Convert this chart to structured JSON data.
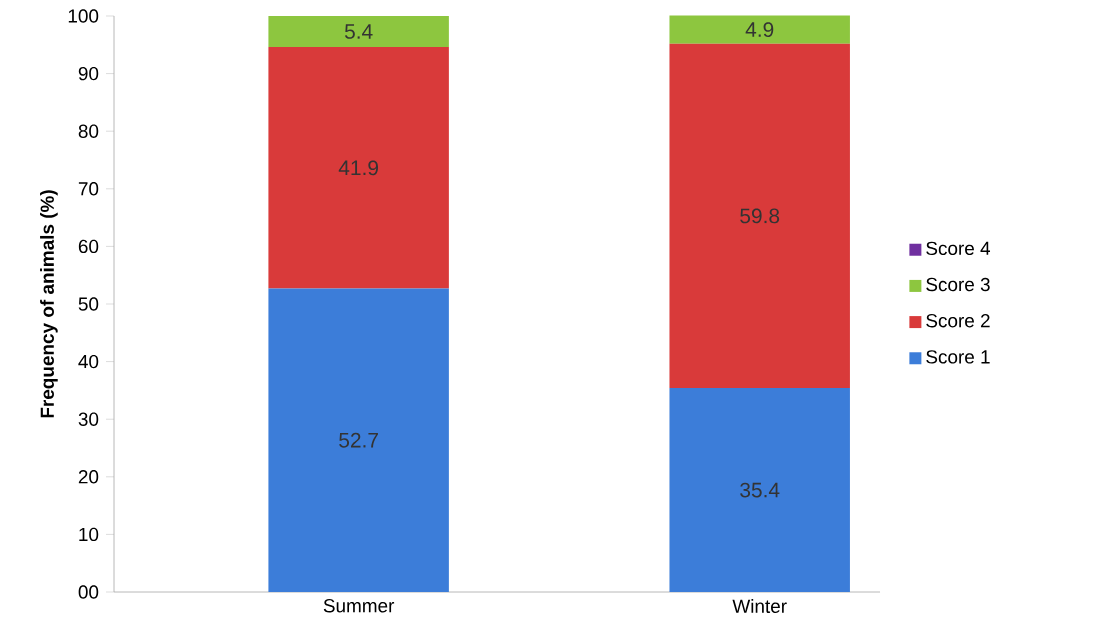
{
  "chart_data": {
    "type": "bar",
    "stacked": true,
    "ylabel": "**Frequency of animals (%)**",
    "categories": [
      "Summer",
      "Winter"
    ],
    "series": [
      {
        "name": "Score 1",
        "color": "#3c7dd9",
        "values": [
          52.7,
          35.4
        ],
        "value_labels": [
          "52.7",
          "35.4"
        ]
      },
      {
        "name": "Score 2",
        "color": "#d93a3a",
        "values": [
          41.9,
          59.8
        ],
        "value_labels": [
          "41.9",
          "59.8"
        ]
      },
      {
        "name": "Score 3",
        "color": "#8dc63f",
        "values": [
          5.4,
          4.9
        ],
        "value_labels": [
          "5.4",
          "4.9"
        ]
      },
      {
        "name": "Score 4",
        "color": "#7030a0",
        "values": [
          null,
          null
        ],
        "value_labels": [
          null,
          null
        ]
      }
    ],
    "ylim": [
      0,
      100
    ],
    "yticks": [
      {
        "value": 0,
        "label": "00"
      },
      10,
      20,
      30,
      40,
      50,
      60,
      70,
      80,
      90,
      100
    ],
    "grid": false,
    "legend": "right"
  }
}
